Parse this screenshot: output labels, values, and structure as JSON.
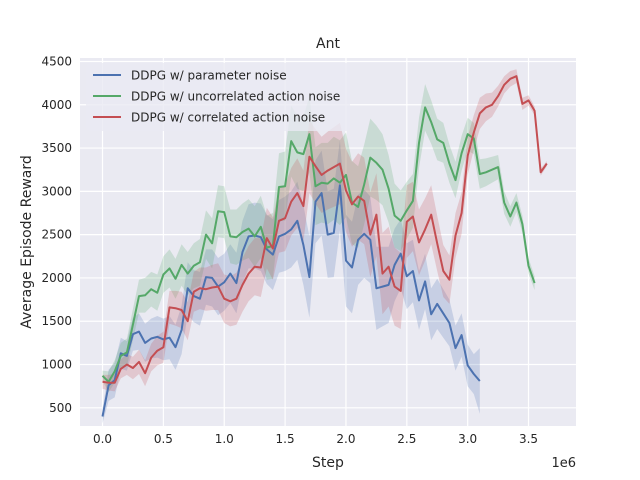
{
  "chart_data": {
    "type": "line",
    "title": "Ant",
    "xlabel": "Step",
    "ylabel": "Average Episode Reward",
    "x_offset_label": "1e6",
    "xlim": [
      -0.185,
      3.89
    ],
    "ylim": [
      290,
      4540
    ],
    "xticks": [
      0.0,
      0.5,
      1.0,
      1.5,
      2.0,
      2.5,
      3.0,
      3.5
    ],
    "xtick_labels": [
      "0.0",
      "0.5",
      "1.0",
      "1.5",
      "2.0",
      "2.5",
      "3.0",
      "3.5"
    ],
    "yticks": [
      500,
      1000,
      1500,
      2000,
      2500,
      3000,
      3500,
      4000,
      4500
    ],
    "ytick_labels": [
      "500",
      "1000",
      "1500",
      "2000",
      "2500",
      "3000",
      "3500",
      "4000",
      "4500"
    ],
    "grid": true,
    "legend_position": "top-left",
    "background": "#EAEAF2",
    "series": [
      {
        "name": "DDPG w/ parameter noise",
        "color": "#4C72B0",
        "x": [
          0.0,
          0.05,
          0.1,
          0.15,
          0.2,
          0.25,
          0.3,
          0.35,
          0.4,
          0.45,
          0.5,
          0.55,
          0.6,
          0.65,
          0.7,
          0.75,
          0.8,
          0.85,
          0.9,
          0.95,
          1.0,
          1.05,
          1.1,
          1.15,
          1.2,
          1.25,
          1.3,
          1.35,
          1.4,
          1.45,
          1.5,
          1.55,
          1.6,
          1.65,
          1.7,
          1.75,
          1.8,
          1.85,
          1.9,
          1.95,
          2.0,
          2.05,
          2.1,
          2.15,
          2.2,
          2.25,
          2.3,
          2.35,
          2.4,
          2.45,
          2.5,
          2.55,
          2.6,
          2.65,
          2.7,
          2.75,
          2.8,
          2.85,
          2.9,
          2.95,
          3.0,
          3.05,
          3.1
        ],
        "y": [
          400,
          760,
          820,
          1130,
          1100,
          1350,
          1380,
          1250,
          1300,
          1320,
          1290,
          1310,
          1200,
          1400,
          1880,
          1790,
          1760,
          2010,
          2000,
          1900,
          1950,
          2050,
          1940,
          2300,
          2480,
          2490,
          2470,
          2330,
          2270,
          2480,
          2510,
          2560,
          2660,
          2380,
          2010,
          2880,
          2980,
          2500,
          2520,
          3070,
          2200,
          2120,
          2440,
          2510,
          2440,
          1880,
          1900,
          1920,
          2150,
          2280,
          2020,
          2080,
          1740,
          1960,
          1580,
          1700,
          1590,
          1480,
          1190,
          1340,
          990,
          890,
          810
        ],
        "band_halfwidth": [
          80,
          180,
          200,
          180,
          170,
          190,
          210,
          220,
          230,
          240,
          240,
          250,
          260,
          280,
          300,
          300,
          310,
          320,
          330,
          330,
          330,
          340,
          350,
          360,
          370,
          380,
          390,
          400,
          410,
          420,
          430,
          440,
          450,
          460,
          470,
          480,
          490,
          500,
          510,
          520,
          530,
          530,
          520,
          510,
          500,
          480,
          460,
          440,
          420,
          400,
          380,
          360,
          340,
          320,
          300,
          290,
          280,
          270,
          260,
          250,
          240,
          230,
          380
        ]
      },
      {
        "name": "DDPG w/ uncorrelated action noise",
        "color": "#55A868",
        "x": [
          0.0,
          0.05,
          0.1,
          0.15,
          0.2,
          0.25,
          0.3,
          0.35,
          0.4,
          0.45,
          0.5,
          0.55,
          0.6,
          0.65,
          0.7,
          0.75,
          0.8,
          0.85,
          0.9,
          0.95,
          1.0,
          1.05,
          1.1,
          1.15,
          1.2,
          1.25,
          1.3,
          1.35,
          1.4,
          1.45,
          1.5,
          1.55,
          1.6,
          1.65,
          1.7,
          1.75,
          1.8,
          1.85,
          1.9,
          1.95,
          2.0,
          2.05,
          2.1,
          2.15,
          2.2,
          2.25,
          2.3,
          2.35,
          2.4,
          2.45,
          2.5,
          2.55,
          2.6,
          2.65,
          2.7,
          2.75,
          2.8,
          2.85,
          2.9,
          2.95,
          3.0,
          3.05,
          3.1,
          3.15,
          3.2,
          3.25,
          3.3,
          3.35,
          3.4,
          3.45,
          3.5,
          3.55
        ],
        "y": [
          870,
          800,
          920,
          1100,
          1140,
          1460,
          1790,
          1800,
          1870,
          1830,
          2040,
          2110,
          1990,
          2150,
          2050,
          2140,
          2180,
          2500,
          2400,
          2770,
          2760,
          2480,
          2470,
          2530,
          2570,
          2480,
          2590,
          2350,
          2370,
          3050,
          3060,
          3580,
          3450,
          3430,
          3660,
          3060,
          3100,
          3090,
          3150,
          3100,
          3190,
          2870,
          2820,
          3080,
          3390,
          3330,
          3250,
          3030,
          2720,
          2660,
          2780,
          2890,
          3560,
          3970,
          3800,
          3600,
          3560,
          3320,
          3130,
          3440,
          3660,
          3610,
          3200,
          3220,
          3250,
          3280,
          2870,
          2710,
          2870,
          2620,
          2140,
          1940
        ],
        "band_halfwidth": [
          60,
          120,
          130,
          150,
          160,
          180,
          190,
          200,
          200,
          210,
          210,
          220,
          230,
          240,
          250,
          260,
          270,
          280,
          290,
          300,
          300,
          310,
          320,
          330,
          340,
          350,
          360,
          370,
          380,
          390,
          400,
          410,
          420,
          430,
          440,
          450,
          460,
          470,
          480,
          490,
          490,
          480,
          470,
          460,
          450,
          430,
          410,
          390,
          370,
          350,
          330,
          310,
          290,
          270,
          250,
          240,
          230,
          220,
          210,
          200,
          190,
          180,
          170,
          160,
          150,
          140,
          130,
          120,
          110,
          100,
          90,
          80
        ]
      },
      {
        "name": "DDPG w/ correlated action noise",
        "color": "#C44E52",
        "x": [
          0.0,
          0.05,
          0.1,
          0.15,
          0.2,
          0.25,
          0.3,
          0.35,
          0.4,
          0.45,
          0.5,
          0.55,
          0.6,
          0.65,
          0.7,
          0.75,
          0.8,
          0.85,
          0.9,
          0.95,
          1.0,
          1.05,
          1.1,
          1.15,
          1.2,
          1.25,
          1.3,
          1.35,
          1.4,
          1.45,
          1.5,
          1.55,
          1.6,
          1.65,
          1.7,
          1.75,
          1.8,
          1.85,
          1.9,
          1.95,
          2.0,
          2.05,
          2.1,
          2.15,
          2.2,
          2.25,
          2.3,
          2.35,
          2.4,
          2.45,
          2.5,
          2.55,
          2.6,
          2.65,
          2.7,
          2.75,
          2.8,
          2.85,
          2.9,
          2.95,
          3.0,
          3.05,
          3.1,
          3.15,
          3.2,
          3.25,
          3.3,
          3.35,
          3.4,
          3.45,
          3.5,
          3.55,
          3.6,
          3.65
        ],
        "y": [
          800,
          790,
          790,
          950,
          1000,
          960,
          1030,
          900,
          1080,
          1160,
          1200,
          1660,
          1650,
          1630,
          1500,
          1840,
          1880,
          1870,
          1890,
          1900,
          1760,
          1730,
          1760,
          1920,
          2050,
          2130,
          2120,
          2460,
          2340,
          2660,
          2690,
          2880,
          2980,
          2830,
          3400,
          3290,
          3190,
          3240,
          3280,
          3320,
          3010,
          2850,
          2940,
          2890,
          2500,
          2730,
          2050,
          2130,
          1900,
          1850,
          2650,
          2710,
          2410,
          2560,
          2730,
          2400,
          2080,
          1980,
          2490,
          2750,
          3410,
          3680,
          3900,
          3970,
          4000,
          4100,
          4230,
          4300,
          4330,
          4010,
          4050,
          3930,
          3220,
          3320
        ],
        "band_halfwidth": [
          80,
          90,
          100,
          110,
          120,
          130,
          140,
          150,
          160,
          170,
          180,
          190,
          200,
          210,
          220,
          230,
          240,
          250,
          260,
          270,
          280,
          290,
          300,
          310,
          320,
          330,
          340,
          350,
          360,
          370,
          380,
          390,
          400,
          410,
          420,
          430,
          440,
          450,
          460,
          470,
          480,
          490,
          500,
          500,
          490,
          480,
          470,
          460,
          450,
          440,
          420,
          400,
          380,
          360,
          340,
          320,
          300,
          280,
          260,
          240,
          220,
          200,
          180,
          160,
          140,
          120,
          100,
          90,
          80,
          70,
          60,
          50,
          40,
          30
        ]
      }
    ]
  }
}
